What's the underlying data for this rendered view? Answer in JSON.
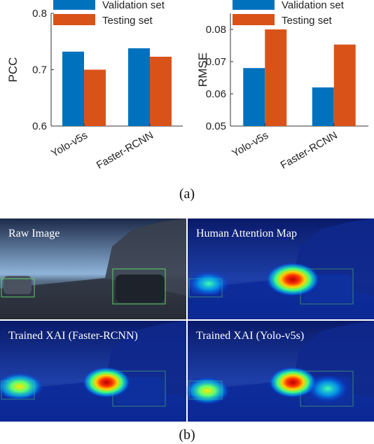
{
  "chart_data": [
    {
      "type": "bar",
      "categories": [
        "Yolo-v5s",
        "Faster-RCNN"
      ],
      "series": [
        {
          "name": "Validation set",
          "values": [
            0.732,
            0.738
          ]
        },
        {
          "name": "Testing set",
          "values": [
            0.7,
            0.723
          ]
        }
      ],
      "ylabel": "PCC",
      "ylim": [
        0.6,
        0.8
      ],
      "yticks": [
        "0.6",
        "0.7",
        "0.8"
      ],
      "legend": "top"
    },
    {
      "type": "bar",
      "categories": [
        "Yolo-v5s",
        "Faster-RCNN"
      ],
      "series": [
        {
          "name": "Validation set",
          "values": [
            0.068,
            0.062
          ]
        },
        {
          "name": "Testing set",
          "values": [
            0.08,
            0.0753
          ]
        }
      ],
      "ylabel": "RMSE",
      "ylim": [
        0.05,
        0.085
      ],
      "yticks": [
        "0.05",
        "0.06",
        "0.07",
        "0.08"
      ],
      "legend": "top"
    }
  ],
  "colors": {
    "validation": "#0072bd",
    "testing": "#d95319"
  },
  "captions": {
    "a": "(a)",
    "b": "(b)"
  },
  "panels": [
    {
      "title": "Raw Image"
    },
    {
      "title": "Human Attention Map"
    },
    {
      "title": "Trained XAI (Faster-RCNN)"
    },
    {
      "title": "Trained XAI (Yolo-v5s)"
    }
  ]
}
